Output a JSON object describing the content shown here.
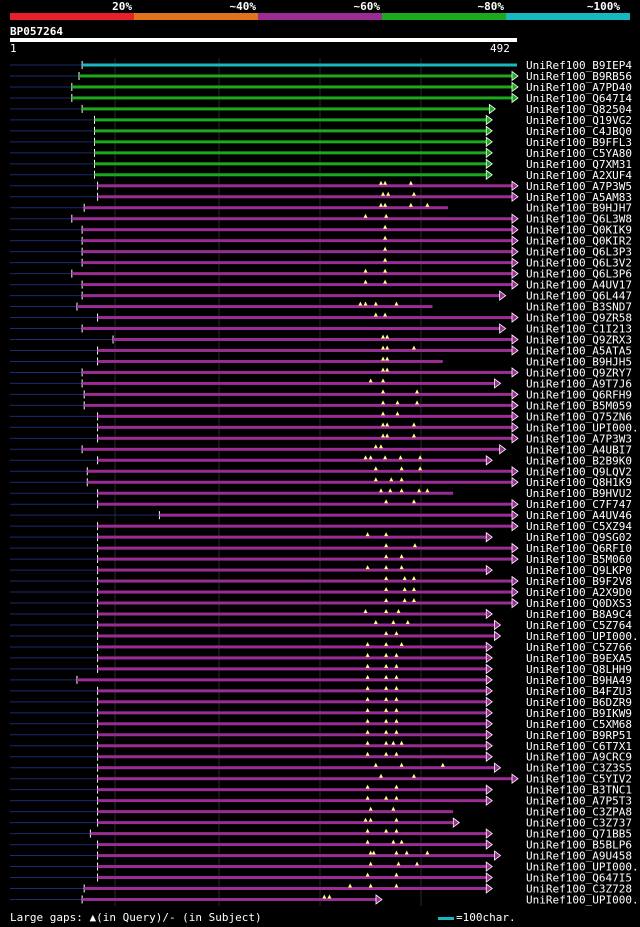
{
  "colors": {
    "red": "#e8202c",
    "orange": "#e0731c",
    "purple": "#9a2c94",
    "green": "#1ea81e",
    "cyan": "#19b8c0"
  },
  "legend": [
    {
      "label": "20%",
      "color": "#e8202c"
    },
    {
      "label": "~40%",
      "color": "#e0731c"
    },
    {
      "label": "~60%",
      "color": "#9a2c94"
    },
    {
      "label": "~80%",
      "color": "#1ea81e"
    },
    {
      "label": "~100%",
      "color": "#19b8c0"
    }
  ],
  "query": {
    "name": "BP057264",
    "start": "1",
    "end": "492",
    "length": 492
  },
  "footer": {
    "gaps_text": "Large gaps: ▲(in Query)/- (in Subject)",
    "scale_text": "=100char."
  },
  "hits": [
    {
      "label": "UniRef100_B9IEP4",
      "s": 70,
      "e": 492,
      "c": "cyan",
      "tri": [],
      "arrow": false
    },
    {
      "label": "UniRef100_B9RB56",
      "s": 67,
      "e": 492,
      "c": "green",
      "tri": [],
      "arrow": true
    },
    {
      "label": "UniRef100_A7PD40",
      "s": 60,
      "e": 492,
      "c": "green",
      "tri": [],
      "arrow": true
    },
    {
      "label": "UniRef100_Q647I4",
      "s": 60,
      "e": 492,
      "c": "green",
      "tri": [],
      "arrow": true
    },
    {
      "label": "UniRef100_Q82504",
      "s": 70,
      "e": 470,
      "c": "green",
      "tri": [],
      "arrow": true
    },
    {
      "label": "UniRef100_Q19VG2",
      "s": 82,
      "e": 467,
      "c": "green",
      "tri": [],
      "arrow": true
    },
    {
      "label": "UniRef100_C4JBQ0",
      "s": 82,
      "e": 467,
      "c": "green",
      "tri": [],
      "arrow": true
    },
    {
      "label": "UniRef100_B9FFL3",
      "s": 82,
      "e": 467,
      "c": "green",
      "tri": [],
      "arrow": true
    },
    {
      "label": "UniRef100_C5YA80",
      "s": 82,
      "e": 467,
      "c": "green",
      "tri": [],
      "arrow": true
    },
    {
      "label": "UniRef100_Q7XM31",
      "s": 82,
      "e": 467,
      "c": "green",
      "tri": [],
      "arrow": true
    },
    {
      "label": "UniRef100_A2XUF4",
      "s": 82,
      "e": 467,
      "c": "green",
      "tri": [],
      "arrow": true
    },
    {
      "label": "UniRef100_A7P3W5",
      "s": 85,
      "e": 492,
      "c": "purple",
      "tri": [
        360,
        364,
        389
      ],
      "arrow": true
    },
    {
      "label": "UniRef100_A5AM83",
      "s": 85,
      "e": 492,
      "c": "purple",
      "tri": [
        362,
        367,
        392
      ],
      "arrow": true
    },
    {
      "label": "UniRef100_B9HJH7",
      "s": 72,
      "e": 425,
      "c": "purple",
      "tri": [
        360,
        364,
        389,
        405
      ],
      "arrow": false
    },
    {
      "label": "UniRef100_Q6L3W8",
      "s": 60,
      "e": 492,
      "c": "purple",
      "tri": [
        345,
        365
      ],
      "arrow": true
    },
    {
      "label": "UniRef100_Q0KIK9",
      "s": 70,
      "e": 492,
      "c": "purple",
      "tri": [
        364
      ],
      "arrow": true
    },
    {
      "label": "UniRef100_Q0KIR2",
      "s": 70,
      "e": 492,
      "c": "purple",
      "tri": [
        364
      ],
      "arrow": true
    },
    {
      "label": "UniRef100_Q6L3P3",
      "s": 70,
      "e": 492,
      "c": "purple",
      "tri": [
        364
      ],
      "arrow": true
    },
    {
      "label": "UniRef100_Q6L3V2",
      "s": 70,
      "e": 492,
      "c": "purple",
      "tri": [
        364
      ],
      "arrow": true
    },
    {
      "label": "UniRef100_Q6L3P6",
      "s": 60,
      "e": 492,
      "c": "purple",
      "tri": [
        345,
        364
      ],
      "arrow": true
    },
    {
      "label": "UniRef100_A4UV17",
      "s": 70,
      "e": 492,
      "c": "purple",
      "tri": [
        345,
        364
      ],
      "arrow": true
    },
    {
      "label": "UniRef100_Q6L447",
      "s": 70,
      "e": 480,
      "c": "purple",
      "tri": [],
      "arrow": true
    },
    {
      "label": "UniRef100_B3SND7",
      "s": 65,
      "e": 410,
      "c": "purple",
      "tri": [
        340,
        345,
        355,
        375
      ],
      "arrow": false
    },
    {
      "label": "UniRef100_Q9ZR58",
      "s": 85,
      "e": 492,
      "c": "purple",
      "tri": [
        355,
        364
      ],
      "arrow": true
    },
    {
      "label": "UniRef100_C1I213",
      "s": 70,
      "e": 480,
      "c": "purple",
      "tri": [],
      "arrow": true
    },
    {
      "label": "UniRef100_Q9ZRX3",
      "s": 100,
      "e": 492,
      "c": "purple",
      "tri": [
        362,
        366
      ],
      "arrow": true
    },
    {
      "label": "UniRef100_A5ATA5",
      "s": 85,
      "e": 492,
      "c": "purple",
      "tri": [
        362,
        366,
        392
      ],
      "arrow": true
    },
    {
      "label": "UniRef100_B9HJH5",
      "s": 85,
      "e": 420,
      "c": "purple",
      "tri": [
        362,
        366
      ],
      "arrow": false
    },
    {
      "label": "UniRef100_Q9ZRY7",
      "s": 70,
      "e": 492,
      "c": "purple",
      "tri": [
        362,
        366
      ],
      "arrow": true
    },
    {
      "label": "UniRef100_A9T7J6",
      "s": 70,
      "e": 475,
      "c": "purple",
      "tri": [
        350,
        362
      ],
      "arrow": true
    },
    {
      "label": "UniRef100_Q6RFH9",
      "s": 72,
      "e": 492,
      "c": "purple",
      "tri": [
        362,
        395
      ],
      "arrow": true
    },
    {
      "label": "UniRef100_B5M059",
      "s": 72,
      "e": 492,
      "c": "purple",
      "tri": [
        362,
        376,
        395
      ],
      "arrow": true
    },
    {
      "label": "UniRef100_Q75ZN6",
      "s": 85,
      "e": 492,
      "c": "purple",
      "tri": [
        362,
        376
      ],
      "arrow": true
    },
    {
      "label": "UniRef100_UPI000..",
      "s": 85,
      "e": 492,
      "c": "purple",
      "tri": [
        362,
        366,
        392
      ],
      "arrow": true
    },
    {
      "label": "UniRef100_A7P3W3",
      "s": 85,
      "e": 492,
      "c": "purple",
      "tri": [
        362,
        366,
        392
      ],
      "arrow": true
    },
    {
      "label": "UniRef100_A4UBI7",
      "s": 70,
      "e": 480,
      "c": "purple",
      "tri": [
        355,
        360
      ],
      "arrow": true
    },
    {
      "label": "UniRef100_B2B9K0",
      "s": 85,
      "e": 467,
      "c": "purple",
      "tri": [
        345,
        350,
        364,
        379,
        398
      ],
      "arrow": true
    },
    {
      "label": "UniRef100_Q9LQV2",
      "s": 75,
      "e": 492,
      "c": "purple",
      "tri": [
        355,
        380,
        398
      ],
      "arrow": true
    },
    {
      "label": "UniRef100_Q8H1K9",
      "s": 75,
      "e": 492,
      "c": "purple",
      "tri": [
        355,
        370,
        380
      ],
      "arrow": true
    },
    {
      "label": "UniRef100_B9HVU2",
      "s": 85,
      "e": 430,
      "c": "purple",
      "tri": [
        360,
        369,
        380,
        397,
        405
      ],
      "arrow": false
    },
    {
      "label": "UniRef100_C7F747",
      "s": 85,
      "e": 492,
      "c": "purple",
      "tri": [
        365,
        392
      ],
      "arrow": true
    },
    {
      "label": "UniRef100_A4UV46",
      "s": 145,
      "e": 492,
      "c": "purple",
      "tri": [],
      "arrow": true
    },
    {
      "label": "UniRef100_C5XZ94",
      "s": 85,
      "e": 492,
      "c": "purple",
      "tri": [],
      "arrow": true
    },
    {
      "label": "UniRef100_Q9SG02",
      "s": 85,
      "e": 467,
      "c": "purple",
      "tri": [
        347,
        365
      ],
      "arrow": true
    },
    {
      "label": "UniRef100_Q6RFI0",
      "s": 85,
      "e": 492,
      "c": "purple",
      "tri": [
        365,
        393
      ],
      "arrow": true
    },
    {
      "label": "UniRef100_B5M060",
      "s": 85,
      "e": 492,
      "c": "purple",
      "tri": [
        365,
        380
      ],
      "arrow": true
    },
    {
      "label": "UniRef100_Q9LKP0",
      "s": 85,
      "e": 467,
      "c": "purple",
      "tri": [
        347,
        365,
        380
      ],
      "arrow": true
    },
    {
      "label": "UniRef100_B9F2V8",
      "s": 85,
      "e": 492,
      "c": "purple",
      "tri": [
        365,
        383,
        392
      ],
      "arrow": true
    },
    {
      "label": "UniRef100_A2X9D0",
      "s": 85,
      "e": 492,
      "c": "purple",
      "tri": [
        365,
        383,
        392
      ],
      "arrow": true
    },
    {
      "label": "UniRef100_Q0DXS3",
      "s": 85,
      "e": 492,
      "c": "purple",
      "tri": [
        365,
        383,
        392
      ],
      "arrow": true
    },
    {
      "label": "UniRef100_B8A9C4",
      "s": 85,
      "e": 467,
      "c": "purple",
      "tri": [
        345,
        365,
        377
      ],
      "arrow": true
    },
    {
      "label": "UniRef100_C5Z764",
      "s": 85,
      "e": 475,
      "c": "purple",
      "tri": [
        355,
        372,
        386
      ],
      "arrow": true
    },
    {
      "label": "UniRef100_UPI000..",
      "s": 85,
      "e": 475,
      "c": "purple",
      "tri": [
        365,
        375
      ],
      "arrow": true
    },
    {
      "label": "UniRef100_C5Z766",
      "s": 85,
      "e": 467,
      "c": "purple",
      "tri": [
        347,
        365,
        380
      ],
      "arrow": true
    },
    {
      "label": "UniRef100_B9EXA5",
      "s": 85,
      "e": 467,
      "c": "purple",
      "tri": [
        347,
        365,
        375
      ],
      "arrow": true
    },
    {
      "label": "UniRef100_Q8LHH9",
      "s": 85,
      "e": 467,
      "c": "purple",
      "tri": [
        347,
        365,
        375
      ],
      "arrow": true
    },
    {
      "label": "UniRef100_B9HA49",
      "s": 65,
      "e": 467,
      "c": "purple",
      "tri": [
        347,
        365,
        375
      ],
      "arrow": true
    },
    {
      "label": "UniRef100_B4FZU3",
      "s": 85,
      "e": 467,
      "c": "purple",
      "tri": [
        347,
        365,
        375
      ],
      "arrow": true
    },
    {
      "label": "UniRef100_B6DZR9",
      "s": 85,
      "e": 467,
      "c": "purple",
      "tri": [
        347,
        365,
        375
      ],
      "arrow": true
    },
    {
      "label": "UniRef100_B9IKW9",
      "s": 85,
      "e": 467,
      "c": "purple",
      "tri": [
        347,
        365,
        375
      ],
      "arrow": true
    },
    {
      "label": "UniRef100_C5XM68",
      "s": 85,
      "e": 467,
      "c": "purple",
      "tri": [
        347,
        365,
        375
      ],
      "arrow": true
    },
    {
      "label": "UniRef100_B9RP51",
      "s": 85,
      "e": 467,
      "c": "purple",
      "tri": [
        347,
        365,
        375
      ],
      "arrow": true
    },
    {
      "label": "UniRef100_C6T7X1",
      "s": 85,
      "e": 467,
      "c": "purple",
      "tri": [
        347,
        365,
        372,
        380
      ],
      "arrow": true
    },
    {
      "label": "UniRef100_A9CRC9",
      "s": 85,
      "e": 467,
      "c": "purple",
      "tri": [
        347,
        365,
        375
      ],
      "arrow": true
    },
    {
      "label": "UniRef100_C3Z3S5",
      "s": 85,
      "e": 475,
      "c": "purple",
      "tri": [
        355,
        380,
        420
      ],
      "arrow": true
    },
    {
      "label": "UniRef100_C5YIV2",
      "s": 85,
      "e": 492,
      "c": "purple",
      "tri": [
        360,
        392
      ],
      "arrow": true
    },
    {
      "label": "UniRef100_B3TNC1",
      "s": 85,
      "e": 467,
      "c": "purple",
      "tri": [
        347,
        375
      ],
      "arrow": true
    },
    {
      "label": "UniRef100_A7P5T3",
      "s": 85,
      "e": 467,
      "c": "purple",
      "tri": [
        347,
        365,
        375
      ],
      "arrow": true
    },
    {
      "label": "UniRef100_C3ZPA8",
      "s": 85,
      "e": 430,
      "c": "purple",
      "tri": [
        350,
        372
      ],
      "arrow": false
    },
    {
      "label": "UniRef100_C3Z737",
      "s": 85,
      "e": 435,
      "c": "purple",
      "tri": [
        345,
        350,
        375
      ],
      "arrow": true
    },
    {
      "label": "UniRef100_Q71BB5",
      "s": 78,
      "e": 467,
      "c": "purple",
      "tri": [
        347,
        365,
        375
      ],
      "arrow": true
    },
    {
      "label": "UniRef100_B5BLP6",
      "s": 85,
      "e": 467,
      "c": "purple",
      "tri": [
        347,
        372,
        380
      ],
      "arrow": true
    },
    {
      "label": "UniRef100_A9U458",
      "s": 85,
      "e": 475,
      "c": "purple",
      "tri": [
        350,
        353,
        375,
        385,
        405
      ],
      "arrow": true
    },
    {
      "label": "UniRef100_UPI000..",
      "s": 85,
      "e": 467,
      "c": "purple",
      "tri": [
        350,
        377,
        395
      ],
      "arrow": true
    },
    {
      "label": "UniRef100_Q647I5",
      "s": 85,
      "e": 467,
      "c": "purple",
      "tri": [
        347,
        375
      ],
      "arrow": true
    },
    {
      "label": "UniRef100_C3Z728",
      "s": 72,
      "e": 467,
      "c": "purple",
      "tri": [
        330,
        350,
        375
      ],
      "arrow": true
    },
    {
      "label": "UniRef100_UPI000..",
      "s": 70,
      "e": 360,
      "c": "purple",
      "tri": [
        305,
        310
      ],
      "arrow": true
    }
  ]
}
